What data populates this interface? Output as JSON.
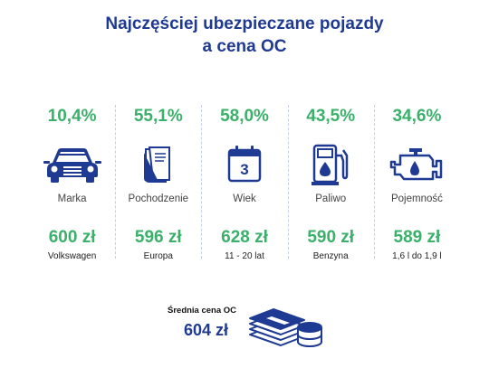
{
  "title": {
    "line1": "Najczęściej ubezpieczane pojazdy",
    "line2": "a cena OC"
  },
  "columns": [
    {
      "percent": "10,4%",
      "icon": "car-icon",
      "label": "Marka",
      "price": "600 zł",
      "value": "Volkswagen"
    },
    {
      "percent": "55,1%",
      "icon": "document-icon",
      "label": "Pochodzenie",
      "price": "596 zł",
      "value": "Europa"
    },
    {
      "percent": "58,0%",
      "icon": "calendar-icon",
      "calendar_number": "3",
      "label": "Wiek",
      "price": "628 zł",
      "value": "11 - 20 lat"
    },
    {
      "percent": "43,5%",
      "icon": "fuel-pump-icon",
      "label": "Paliwo",
      "price": "590 zł",
      "value": "Benzyna"
    },
    {
      "percent": "34,6%",
      "icon": "engine-icon",
      "label": "Pojemność",
      "price": "589 zł",
      "value": "1,6 l do 1,9 l"
    }
  ],
  "average": {
    "label": "Średnia cena OC",
    "value": "604 zł",
    "icon": "money-stack-icon"
  },
  "colors": {
    "title": "#1f3a93",
    "accent_green": "#3bb06a",
    "icon_blue": "#1f3a93"
  }
}
